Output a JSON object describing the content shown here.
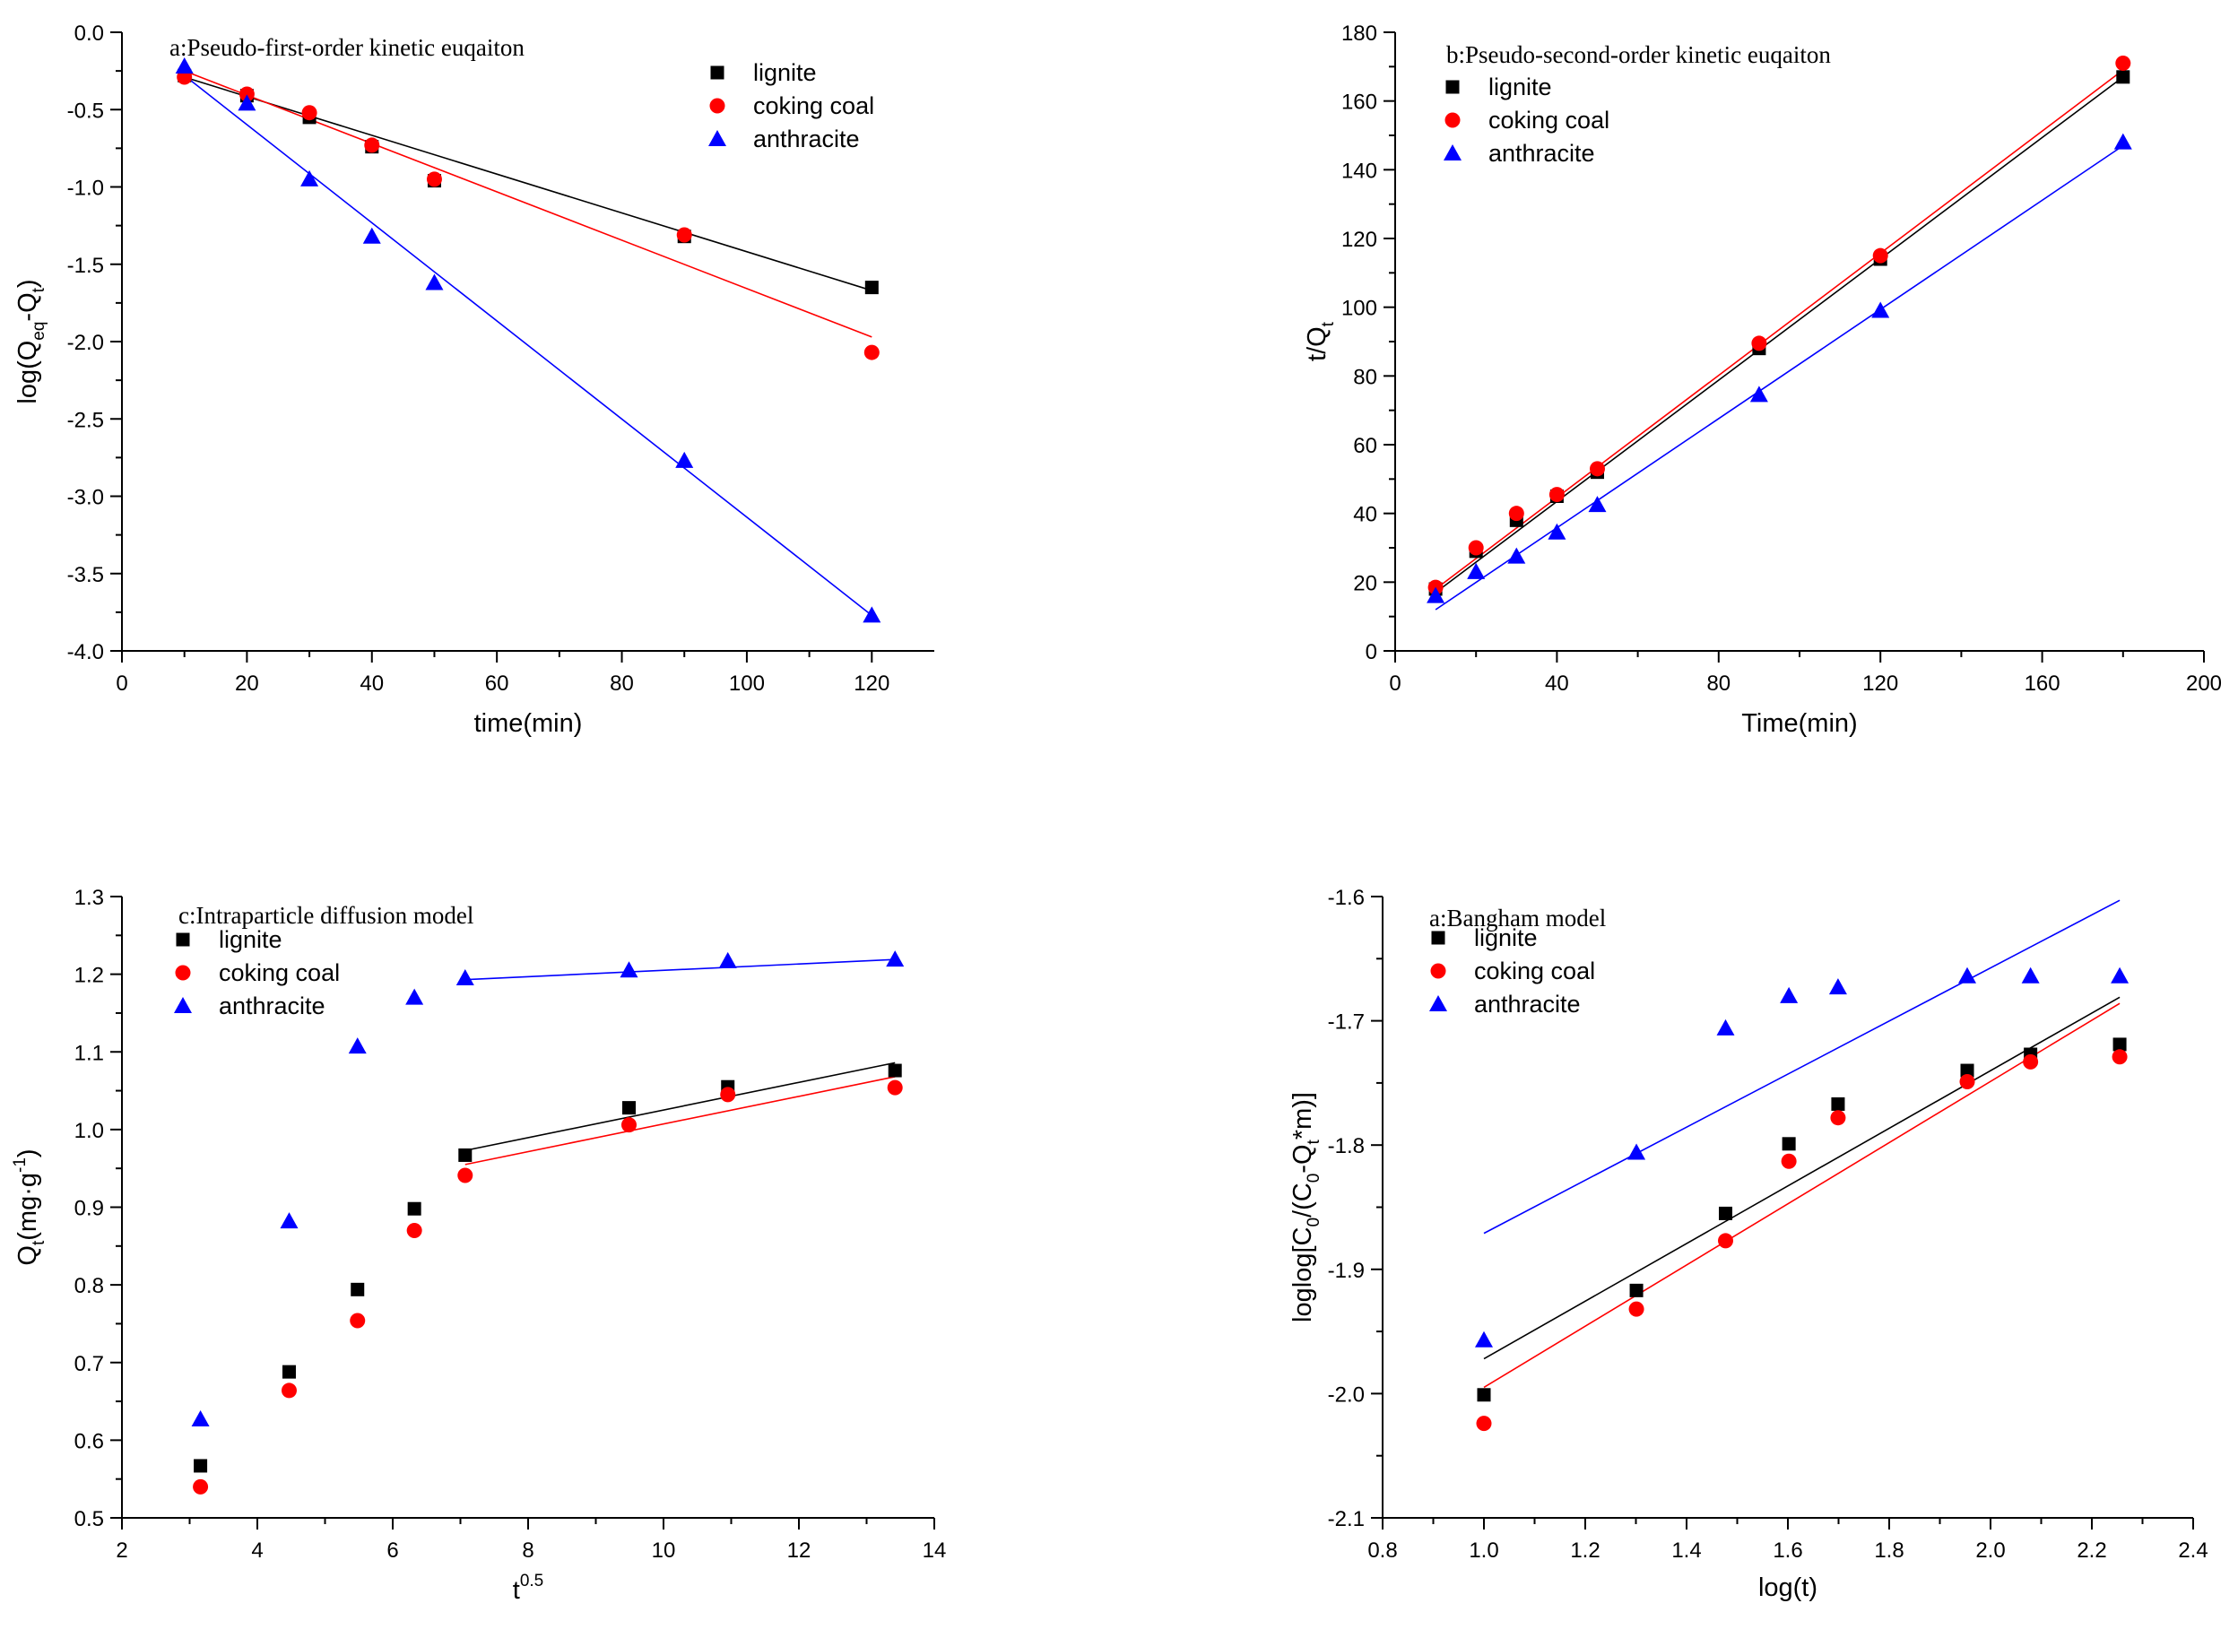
{
  "colors": {
    "lignite": "#000000",
    "coking": "#ff0000",
    "anthracite": "#0000ff"
  },
  "chart_data": [
    {
      "type": "scatter",
      "title": "a:Pseudo-first-order kinetic euqaiton",
      "xlabel": "time(min)",
      "ylabel_main": "log(Q",
      "ylabel_sub1": "eq",
      "ylabel_mid": "-Q",
      "ylabel_sub2": "t",
      "ylabel_end": ")",
      "xlim": [
        0,
        130
      ],
      "ylim": [
        -4.0,
        0.0
      ],
      "xticks": [
        0,
        20,
        40,
        60,
        80,
        100,
        120
      ],
      "yticks": [
        -4.0,
        -3.5,
        -3.0,
        -2.5,
        -2.0,
        -1.5,
        -1.0,
        -0.5,
        0.0
      ],
      "xtick_labels": [
        "0",
        "20",
        "40",
        "60",
        "80",
        "100",
        "120"
      ],
      "ytick_labels": [
        "-4.0",
        "-3.5",
        "-3.0",
        "-2.5",
        "-2.0",
        "-1.5",
        "-1.0",
        "-0.5",
        "0.0"
      ],
      "series": [
        {
          "name": "lignite",
          "marker": "square",
          "color": "#000000",
          "x": [
            10,
            20,
            30,
            40,
            50,
            90,
            120
          ],
          "y": [
            -0.28,
            -0.41,
            -0.55,
            -0.74,
            -0.96,
            -1.32,
            -1.65
          ],
          "fit": [
            [
              10,
              -0.29
            ],
            [
              120,
              -1.67
            ]
          ]
        },
        {
          "name": "coking coal",
          "marker": "circle",
          "color": "#ff0000",
          "x": [
            10,
            20,
            30,
            40,
            50,
            90,
            120
          ],
          "y": [
            -0.29,
            -0.4,
            -0.52,
            -0.73,
            -0.95,
            -1.31,
            -2.07
          ],
          "fit": [
            [
              10,
              -0.25
            ],
            [
              120,
              -1.97
            ]
          ]
        },
        {
          "name": "anthracite",
          "marker": "triangle",
          "color": "#0000ff",
          "x": [
            10,
            20,
            30,
            40,
            50,
            90,
            120
          ],
          "y": [
            -0.22,
            -0.46,
            -0.95,
            -1.32,
            -1.62,
            -2.77,
            -3.77
          ],
          "fit": [
            [
              10,
              -0.28
            ],
            [
              120,
              -3.77
            ]
          ]
        }
      ]
    },
    {
      "type": "scatter",
      "title": "b:Pseudo-second-order kinetic euqaiton",
      "xlabel": "Time(min)",
      "ylabel_main": "t/Q",
      "ylabel_sub1": "t",
      "ylabel_mid": "",
      "ylabel_sub2": "",
      "ylabel_end": "",
      "xlim": [
        0,
        200
      ],
      "ylim": [
        0,
        180
      ],
      "xticks": [
        0,
        40,
        80,
        120,
        160,
        200
      ],
      "yticks": [
        0,
        20,
        40,
        60,
        80,
        100,
        120,
        140,
        160,
        180
      ],
      "xtick_labels": [
        "0",
        "40",
        "80",
        "120",
        "160",
        "200"
      ],
      "ytick_labels": [
        "0",
        "20",
        "40",
        "60",
        "80",
        "100",
        "120",
        "140",
        "160",
        "180"
      ],
      "series": [
        {
          "name": "lignite",
          "marker": "square",
          "color": "#000000",
          "x": [
            10,
            20,
            30,
            40,
            50,
            90,
            120,
            180
          ],
          "y": [
            18,
            29,
            38,
            45,
            52,
            88,
            114,
            167
          ],
          "fit": [
            [
              10,
              17
            ],
            [
              180,
              167
            ]
          ]
        },
        {
          "name": "coking coal",
          "marker": "circle",
          "color": "#ff0000",
          "x": [
            10,
            20,
            30,
            40,
            50,
            90,
            120,
            180
          ],
          "y": [
            18.5,
            30,
            40,
            45.5,
            53,
            89.5,
            115,
            171
          ],
          "fit": [
            [
              10,
              18
            ],
            [
              180,
              169
            ]
          ]
        },
        {
          "name": "anthracite",
          "marker": "triangle",
          "color": "#0000ff",
          "x": [
            10,
            20,
            30,
            40,
            50,
            90,
            120,
            180
          ],
          "y": [
            16,
            23,
            27.5,
            34.5,
            42.5,
            74.5,
            99,
            148
          ],
          "fit": [
            [
              10,
              12
            ],
            [
              180,
              147
            ]
          ]
        }
      ]
    },
    {
      "type": "scatter",
      "title": "c:Intraparticle diffusion model",
      "xlabel": "t",
      "xlabel_sup": "0.5",
      "ylabel_main": "Q",
      "ylabel_sub1": "t",
      "ylabel_mid": "(mg·g",
      "ylabel_sup": "-1",
      "ylabel_end": ")",
      "xlim": [
        2,
        14
      ],
      "ylim": [
        0.5,
        1.3
      ],
      "xticks": [
        2,
        4,
        6,
        8,
        10,
        12,
        14
      ],
      "yticks": [
        0.5,
        0.6,
        0.7,
        0.8,
        0.9,
        1.0,
        1.1,
        1.2,
        1.3
      ],
      "xtick_labels": [
        "2",
        "4",
        "6",
        "8",
        "10",
        "12",
        "14"
      ],
      "ytick_labels": [
        "0.5",
        "0.6",
        "0.7",
        "0.8",
        "0.9",
        "1.0",
        "1.1",
        "1.2",
        "1.3"
      ],
      "series": [
        {
          "name": "lignite",
          "marker": "square",
          "color": "#000000",
          "x": [
            3.16,
            4.47,
            5.48,
            6.32,
            7.07,
            9.49,
            10.95,
            13.42
          ],
          "y": [
            0.567,
            0.688,
            0.794,
            0.898,
            0.967,
            1.028,
            1.055,
            1.076
          ],
          "fit": [
            [
              7.07,
              0.973
            ],
            [
              13.42,
              1.086
            ]
          ]
        },
        {
          "name": "coking coal",
          "marker": "circle",
          "color": "#ff0000",
          "x": [
            3.16,
            4.47,
            5.48,
            6.32,
            7.07,
            9.49,
            10.95,
            13.42
          ],
          "y": [
            0.54,
            0.664,
            0.754,
            0.87,
            0.941,
            1.006,
            1.045,
            1.054
          ],
          "fit": [
            [
              7.07,
              0.955
            ],
            [
              13.42,
              1.068
            ]
          ]
        },
        {
          "name": "anthracite",
          "marker": "triangle",
          "color": "#0000ff",
          "x": [
            3.16,
            4.47,
            5.48,
            6.32,
            7.07,
            9.49,
            10.95,
            13.42
          ],
          "y": [
            0.627,
            0.882,
            1.107,
            1.17,
            1.195,
            1.205,
            1.217,
            1.219
          ],
          "fit": [
            [
              7.07,
              1.193
            ],
            [
              13.42,
              1.219
            ]
          ]
        }
      ]
    },
    {
      "type": "scatter",
      "title": "a:Bangham model",
      "xlabel": "log(t)",
      "ylabel_main": "loglog[C",
      "ylabel_sub1": "0",
      "ylabel_mid": "/(C",
      "ylabel_sub2": "0",
      "ylabel_mid2": "-Q",
      "ylabel_sub3": "t",
      "ylabel_end": "*m)]",
      "xlim": [
        0.8,
        2.4
      ],
      "ylim": [
        -2.1,
        -1.6
      ],
      "xticks": [
        0.8,
        1.0,
        1.2,
        1.4,
        1.6,
        1.8,
        2.0,
        2.2,
        2.4
      ],
      "yticks": [
        -2.1,
        -2.0,
        -1.9,
        -1.8,
        -1.7,
        -1.6
      ],
      "xtick_labels": [
        "0.8",
        "1.0",
        "1.2",
        "1.4",
        "1.6",
        "1.8",
        "2.0",
        "2.2",
        "2.4"
      ],
      "ytick_labels": [
        "-2.1",
        "-2.0",
        "-1.9",
        "-1.8",
        "-1.7",
        "-1.6"
      ],
      "series": [
        {
          "name": "lignite",
          "marker": "square",
          "color": "#000000",
          "x": [
            1.0,
            1.301,
            1.477,
            1.602,
            1.699,
            1.954,
            2.079,
            2.255
          ],
          "y": [
            -2.001,
            -1.917,
            -1.855,
            -1.799,
            -1.767,
            -1.74,
            -1.727,
            -1.719
          ],
          "fit": [
            [
              1.0,
              -1.972
            ],
            [
              2.255,
              -1.681
            ]
          ]
        },
        {
          "name": "coking coal",
          "marker": "circle",
          "color": "#ff0000",
          "x": [
            1.0,
            1.301,
            1.477,
            1.602,
            1.699,
            1.954,
            2.079,
            2.255
          ],
          "y": [
            -2.024,
            -1.932,
            -1.877,
            -1.813,
            -1.778,
            -1.749,
            -1.733,
            -1.729
          ],
          "fit": [
            [
              1.0,
              -1.995
            ],
            [
              2.255,
              -1.686
            ]
          ]
        },
        {
          "name": "anthracite",
          "marker": "triangle",
          "color": "#0000ff",
          "x": [
            1.0,
            1.301,
            1.477,
            1.602,
            1.699,
            1.954,
            2.079,
            2.255
          ],
          "y": [
            -1.957,
            -1.806,
            -1.706,
            -1.68,
            -1.673,
            -1.664,
            -1.664,
            -1.664
          ],
          "fit": [
            [
              1.0,
              -1.871
            ],
            [
              2.255,
              -1.603
            ]
          ]
        }
      ]
    }
  ]
}
